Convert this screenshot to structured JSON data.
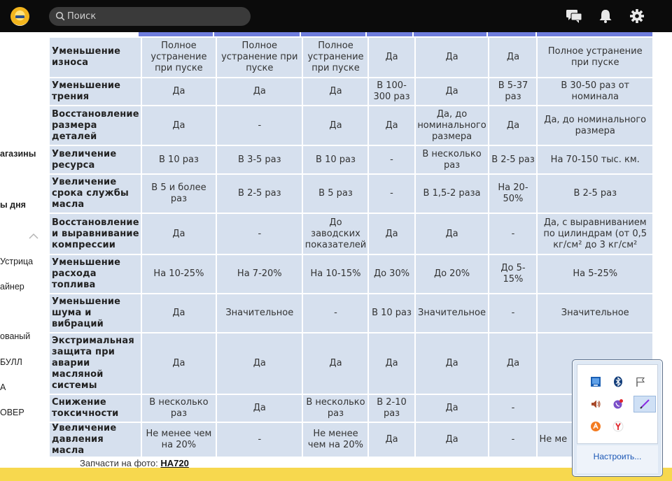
{
  "header": {
    "search_placeholder": "Поиск",
    "icons": [
      "site-logo",
      "search-icon",
      "chat-icon",
      "bell-icon",
      "gear-icon"
    ]
  },
  "sidebar": {
    "items": [
      "агазины",
      "ы дня",
      "Устрица",
      "айнер",
      "ованый",
      "БУЛЛ",
      "А",
      "ОВЕР"
    ]
  },
  "table": {
    "rows": [
      {
        "label": "Уменьшение износа",
        "cells": [
          "Полное устранение при пуске",
          "Полное устранение при пуске",
          "Полное устранение при пуске",
          "Да",
          "Да",
          "Да",
          "Полное устранение при пуске"
        ]
      },
      {
        "label": "Уменьшение трения",
        "cells": [
          "Да",
          "Да",
          "Да",
          "В 100-300 раз",
          "Да",
          "В 5-37 раз",
          "В 30-50 раз от номинала"
        ]
      },
      {
        "label": "Восстановление размера деталей",
        "cells": [
          "Да",
          "-",
          "Да",
          "Да",
          "Да, до номинального размера",
          "Да",
          "Да, до номинального размера"
        ]
      },
      {
        "label": "Увеличение ресурса",
        "cells": [
          "В 10 раз",
          "В 3-5 раз",
          "В 10 раз",
          "-",
          "В несколько раз",
          "В 2-5 раз",
          "На 70-150 тыс. км."
        ]
      },
      {
        "label": "Увеличение срока службы масла",
        "cells": [
          "В 5 и более раз",
          "В 2-5 раз",
          "В 5 раз",
          "-",
          "В 1,5-2 раза",
          "На 20-50%",
          "В 2-5 раз"
        ]
      },
      {
        "label": "Восстановление и выравнивание компрессии",
        "cells": [
          "Да",
          "-",
          "До заводских показателей",
          "Да",
          "Да",
          "-",
          "Да, с выравниванием по цилиндрам (от 0,5 кг/см² до 3 кг/см²"
        ]
      },
      {
        "label": "Уменьшение расхода топлива",
        "cells": [
          "На 10-25%",
          "На 7-20%",
          "На 10-15%",
          "До 30%",
          "До 20%",
          "До 5-15%",
          "На 5-25%"
        ]
      },
      {
        "label": "Уменьшение шума и вибраций",
        "cells": [
          "Да",
          "Значительное",
          "-",
          "В 10 раз",
          "Значительное",
          "-",
          "Значительное"
        ]
      },
      {
        "label": "Экстримальная защита при аварии масляной системы",
        "cells": [
          "Да",
          "Да",
          "Да",
          "Да",
          "Да",
          "Да",
          ""
        ]
      },
      {
        "label": "Снижение токсичности",
        "cells": [
          "В несколько раз",
          "Да",
          "В несколько раз",
          "В 2-10 раз",
          "Да",
          "-",
          ""
        ]
      },
      {
        "label": "Увеличение давления масла",
        "cells": [
          "Не менее чем на 20%",
          "-",
          "Не менее чем на 20%",
          "Да",
          "Да",
          "-",
          "Не ме"
        ]
      }
    ]
  },
  "caption": {
    "prefix": "Запчасти на фото:",
    "link": "HA720"
  },
  "tray": {
    "icons": [
      "network-icon",
      "bluetooth-icon",
      "flag-icon",
      "volume-icon",
      "viber-icon",
      "pen-icon",
      "avast-icon",
      "yandex-icon"
    ],
    "customize": "Настроить..."
  },
  "colors": {
    "topbar": "#0b0b0b",
    "table_cell": "#d6e0ee",
    "table_header": "#6f7ddd",
    "bottom_bar": "#f7d84e",
    "link": "#1b57b5"
  }
}
